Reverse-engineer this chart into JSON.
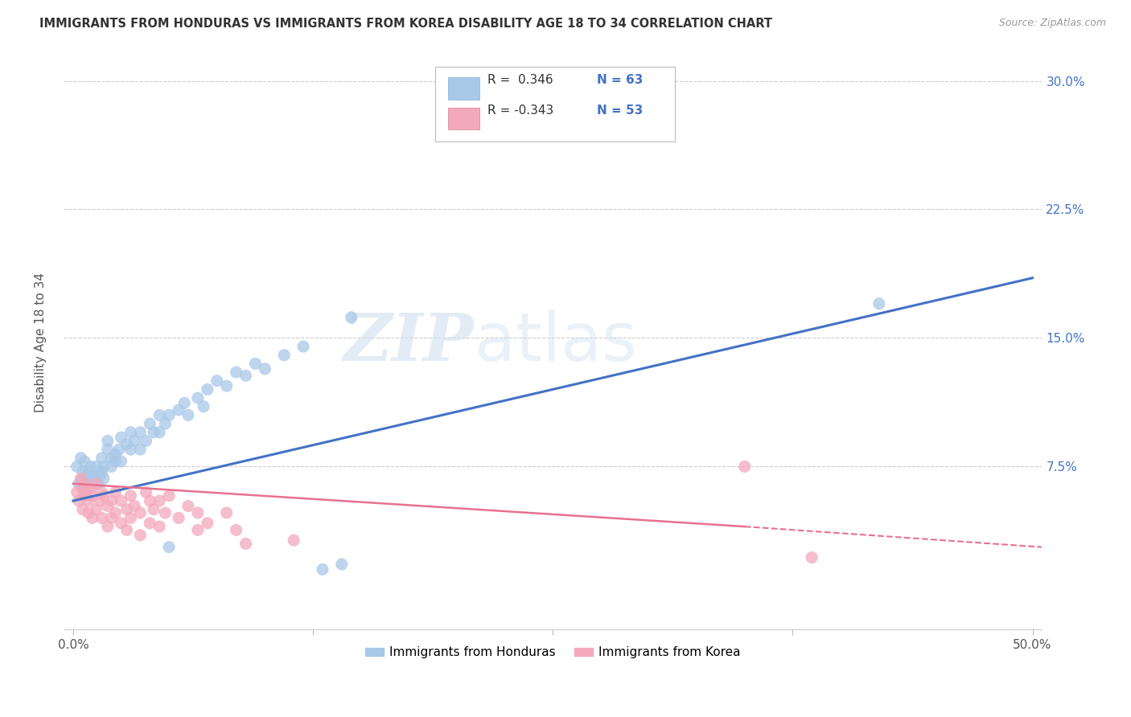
{
  "title": "IMMIGRANTS FROM HONDURAS VS IMMIGRANTS FROM KOREA DISABILITY AGE 18 TO 34 CORRELATION CHART",
  "source": "Source: ZipAtlas.com",
  "ylabel": "Disability Age 18 to 34",
  "xlim": [
    -0.005,
    0.505
  ],
  "ylim": [
    -0.02,
    0.315
  ],
  "xticks": [
    0.0,
    0.125,
    0.25,
    0.375,
    0.5
  ],
  "xtick_labels": [
    "0.0%",
    "",
    "",
    "",
    "50.0%"
  ],
  "ytick_labels": [
    "7.5%",
    "15.0%",
    "22.5%",
    "30.0%"
  ],
  "ytick_vals": [
    0.075,
    0.15,
    0.225,
    0.3
  ],
  "honduras_color": "#a8c8e8",
  "korea_color": "#f4a8bc",
  "honduras_line_color": "#4472c4",
  "korea_line_color": "#e87090",
  "legend_r_honduras": "R =  0.346",
  "legend_n_honduras": "N = 63",
  "legend_r_korea": "R = -0.343",
  "legend_n_korea": "N = 53",
  "watermark_zip": "ZIP",
  "watermark_atlas": "atlas",
  "honduras_points": [
    [
      0.002,
      0.075
    ],
    [
      0.003,
      0.065
    ],
    [
      0.004,
      0.08
    ],
    [
      0.005,
      0.068
    ],
    [
      0.005,
      0.072
    ],
    [
      0.006,
      0.06
    ],
    [
      0.006,
      0.078
    ],
    [
      0.007,
      0.065
    ],
    [
      0.007,
      0.07
    ],
    [
      0.008,
      0.072
    ],
    [
      0.008,
      0.068
    ],
    [
      0.009,
      0.075
    ],
    [
      0.01,
      0.065
    ],
    [
      0.01,
      0.07
    ],
    [
      0.011,
      0.068
    ],
    [
      0.012,
      0.075
    ],
    [
      0.013,
      0.065
    ],
    [
      0.014,
      0.07
    ],
    [
      0.015,
      0.072
    ],
    [
      0.015,
      0.08
    ],
    [
      0.016,
      0.068
    ],
    [
      0.016,
      0.075
    ],
    [
      0.018,
      0.085
    ],
    [
      0.018,
      0.09
    ],
    [
      0.02,
      0.08
    ],
    [
      0.02,
      0.075
    ],
    [
      0.022,
      0.078
    ],
    [
      0.022,
      0.082
    ],
    [
      0.024,
      0.085
    ],
    [
      0.025,
      0.078
    ],
    [
      0.025,
      0.092
    ],
    [
      0.028,
      0.088
    ],
    [
      0.03,
      0.085
    ],
    [
      0.03,
      0.095
    ],
    [
      0.032,
      0.09
    ],
    [
      0.035,
      0.095
    ],
    [
      0.035,
      0.085
    ],
    [
      0.038,
      0.09
    ],
    [
      0.04,
      0.1
    ],
    [
      0.042,
      0.095
    ],
    [
      0.045,
      0.095
    ],
    [
      0.045,
      0.105
    ],
    [
      0.048,
      0.1
    ],
    [
      0.05,
      0.105
    ],
    [
      0.05,
      0.028
    ],
    [
      0.055,
      0.108
    ],
    [
      0.058,
      0.112
    ],
    [
      0.06,
      0.105
    ],
    [
      0.065,
      0.115
    ],
    [
      0.068,
      0.11
    ],
    [
      0.07,
      0.12
    ],
    [
      0.075,
      0.125
    ],
    [
      0.08,
      0.122
    ],
    [
      0.085,
      0.13
    ],
    [
      0.09,
      0.128
    ],
    [
      0.095,
      0.135
    ],
    [
      0.1,
      0.132
    ],
    [
      0.11,
      0.14
    ],
    [
      0.12,
      0.145
    ],
    [
      0.13,
      0.015
    ],
    [
      0.14,
      0.018
    ],
    [
      0.145,
      0.162
    ],
    [
      0.42,
      0.17
    ]
  ],
  "korea_points": [
    [
      0.002,
      0.06
    ],
    [
      0.003,
      0.055
    ],
    [
      0.004,
      0.068
    ],
    [
      0.005,
      0.062
    ],
    [
      0.005,
      0.05
    ],
    [
      0.006,
      0.058
    ],
    [
      0.006,
      0.065
    ],
    [
      0.007,
      0.06
    ],
    [
      0.008,
      0.055
    ],
    [
      0.008,
      0.048
    ],
    [
      0.009,
      0.062
    ],
    [
      0.01,
      0.058
    ],
    [
      0.01,
      0.045
    ],
    [
      0.012,
      0.065
    ],
    [
      0.012,
      0.05
    ],
    [
      0.014,
      0.055
    ],
    [
      0.015,
      0.06
    ],
    [
      0.015,
      0.045
    ],
    [
      0.016,
      0.058
    ],
    [
      0.018,
      0.052
    ],
    [
      0.018,
      0.04
    ],
    [
      0.02,
      0.055
    ],
    [
      0.02,
      0.045
    ],
    [
      0.022,
      0.06
    ],
    [
      0.022,
      0.048
    ],
    [
      0.025,
      0.055
    ],
    [
      0.025,
      0.042
    ],
    [
      0.028,
      0.05
    ],
    [
      0.028,
      0.038
    ],
    [
      0.03,
      0.058
    ],
    [
      0.03,
      0.045
    ],
    [
      0.032,
      0.052
    ],
    [
      0.035,
      0.048
    ],
    [
      0.035,
      0.035
    ],
    [
      0.038,
      0.06
    ],
    [
      0.04,
      0.055
    ],
    [
      0.04,
      0.042
    ],
    [
      0.042,
      0.05
    ],
    [
      0.045,
      0.055
    ],
    [
      0.045,
      0.04
    ],
    [
      0.048,
      0.048
    ],
    [
      0.05,
      0.058
    ],
    [
      0.055,
      0.045
    ],
    [
      0.06,
      0.052
    ],
    [
      0.065,
      0.048
    ],
    [
      0.065,
      0.038
    ],
    [
      0.07,
      0.042
    ],
    [
      0.08,
      0.048
    ],
    [
      0.085,
      0.038
    ],
    [
      0.09,
      0.03
    ],
    [
      0.115,
      0.032
    ],
    [
      0.35,
      0.075
    ],
    [
      0.385,
      0.022
    ]
  ],
  "fig_width": 14.06,
  "fig_height": 8.92,
  "dpi": 100
}
